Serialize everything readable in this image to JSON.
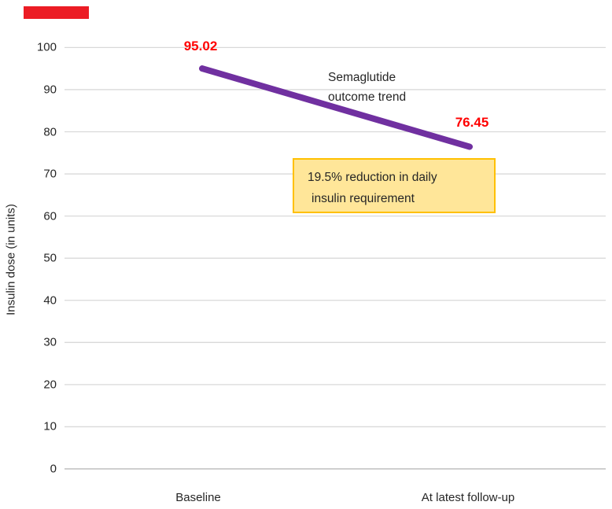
{
  "marker": {
    "color": "#EC1C24"
  },
  "chart_data": {
    "type": "line",
    "title": "",
    "ylabel": "Insulin dose (in units)",
    "xlabel": "",
    "categories": [
      "Baseline",
      "At latest follow-up"
    ],
    "series": [
      {
        "name": "Insulin dose",
        "values": [
          95.02,
          76.45
        ]
      }
    ],
    "value_labels": [
      "95.02",
      "76.45"
    ],
    "ylim": [
      0,
      100
    ],
    "yticks": [
      0,
      10,
      20,
      30,
      40,
      50,
      60,
      70,
      80,
      90,
      100
    ],
    "grid": true,
    "legend_position": "none",
    "colors": {
      "line": "#7030A0",
      "value_label": "#FF0000",
      "gridline": "#D9D9D9",
      "zero_gridline": "#BFBFBF",
      "axis_text": "#262626"
    },
    "annotations": {
      "trend_label_line1": "Semaglutide",
      "trend_label_line2": "outcome trend",
      "box_line1": "19.5% reduction in daily",
      "box_line2": "insulin requirement",
      "box_fill": "#FFE699",
      "box_border": "#FFC000"
    }
  }
}
